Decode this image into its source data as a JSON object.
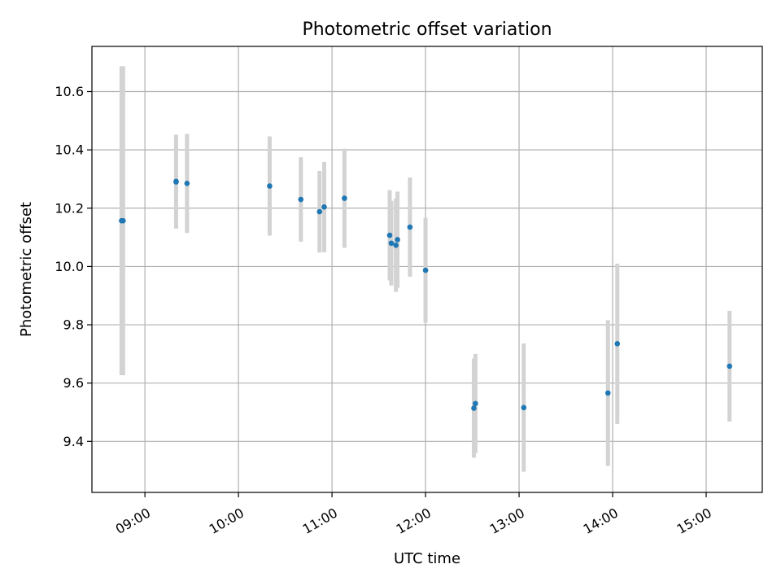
{
  "chart_data": {
    "type": "scatter",
    "title": "Photometric offset variation",
    "xlabel": "UTC time",
    "ylabel": "Photometric offset",
    "x_unit": "time of day (UTC)",
    "xlim": [
      "08:26",
      "15:36"
    ],
    "ylim": [
      9.225,
      10.755
    ],
    "x_ticks": [
      "09:00",
      "10:00",
      "11:00",
      "12:00",
      "13:00",
      "14:00",
      "15:00"
    ],
    "y_ticks": [
      9.4,
      9.6,
      9.8,
      10.0,
      10.2,
      10.4,
      10.6
    ],
    "y_tick_labels": [
      "9.4",
      "9.6",
      "9.8",
      "10.0",
      "10.2",
      "10.4",
      "10.6"
    ],
    "grid": true,
    "legend": "none",
    "colors": {
      "point": "#1f77b4",
      "errorbar": "#d3d3d3"
    },
    "series": [
      {
        "points": [
          {
            "x": "08:45",
            "y": 10.157,
            "yerr": 0.53
          },
          {
            "x": "08:46",
            "y": 10.157,
            "yerr": 0.53
          },
          {
            "x": "09:20",
            "y": 10.29,
            "yerr": 0.16
          },
          {
            "x": "09:20",
            "y": 10.292,
            "yerr": 0.16
          },
          {
            "x": "09:27",
            "y": 10.285,
            "yerr": 0.17
          },
          {
            "x": "10:20",
            "y": 10.276,
            "yerr": 0.17
          },
          {
            "x": "10:40",
            "y": 10.23,
            "yerr": 0.145
          },
          {
            "x": "10:52",
            "y": 10.188,
            "yerr": 0.14
          },
          {
            "x": "10:55",
            "y": 10.204,
            "yerr": 0.155
          },
          {
            "x": "11:08",
            "y": 10.234,
            "yerr": 0.17
          },
          {
            "x": "11:37",
            "y": 10.107,
            "yerr": 0.155
          },
          {
            "x": "11:38",
            "y": 10.08,
            "yerr": 0.145
          },
          {
            "x": "11:41",
            "y": 10.073,
            "yerr": 0.16
          },
          {
            "x": "11:42",
            "y": 10.092,
            "yerr": 0.165
          },
          {
            "x": "11:50",
            "y": 10.135,
            "yerr": 0.17
          },
          {
            "x": "12:00",
            "y": 9.987,
            "yerr": 0.18
          },
          {
            "x": "12:31",
            "y": 9.514,
            "yerr": 0.17
          },
          {
            "x": "12:32",
            "y": 9.53,
            "yerr": 0.17
          },
          {
            "x": "13:03",
            "y": 9.516,
            "yerr": 0.22
          },
          {
            "x": "13:57",
            "y": 9.566,
            "yerr": 0.25
          },
          {
            "x": "14:03",
            "y": 9.735,
            "yerr": 0.275
          },
          {
            "x": "15:15",
            "y": 9.658,
            "yerr": 0.19
          }
        ]
      }
    ]
  }
}
